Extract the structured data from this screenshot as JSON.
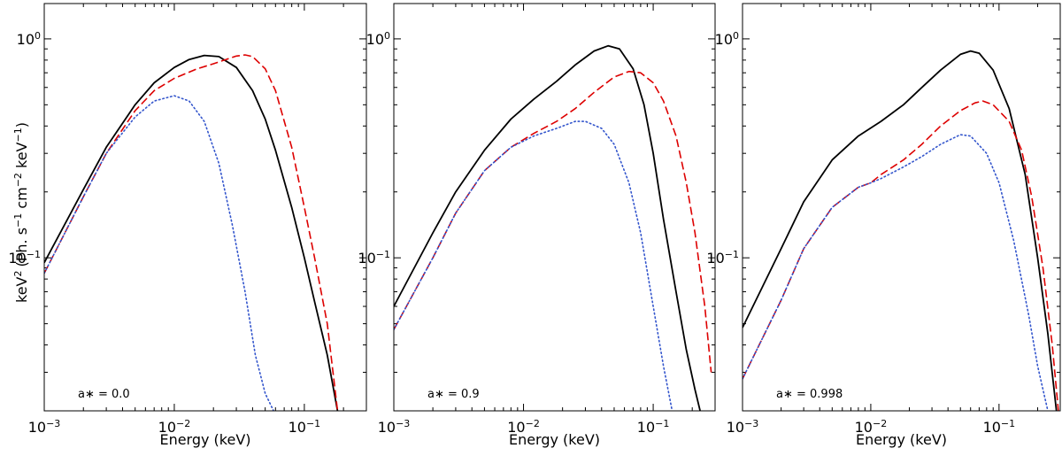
{
  "figure": {
    "ylabel": "keV² (Ph. s⁻¹ cm⁻² keV⁻¹)",
    "ylabel_base": "keV",
    "ylabel_parts": [
      "(Ph. s",
      " cm",
      " keV",
      ")"
    ],
    "ylabel_sups": [
      "2",
      "−1",
      "−2",
      "−1"
    ],
    "xlabel": "Energy (keV)"
  },
  "legend_colors": {
    "total": "#000000",
    "dashed": "#dd0000",
    "dotted": "#3355cc"
  },
  "chart_data": [
    {
      "type": "line",
      "annotation": "a∗ = 0.0",
      "xscale": "log",
      "yscale": "log",
      "xlim": [
        0.001,
        0.3
      ],
      "ylim": [
        0.02,
        1.45
      ],
      "xticks": [
        {
          "base": "10",
          "exp": "−3",
          "value": 0.001
        },
        {
          "base": "10",
          "exp": "−2",
          "value": 0.01
        },
        {
          "base": "10",
          "exp": "−1",
          "value": 0.1
        }
      ],
      "yticks": [
        {
          "base": "10",
          "exp": "−1",
          "value": 0.1
        },
        {
          "base": "10",
          "exp": "0",
          "value": 1.0
        }
      ],
      "series": [
        {
          "name": "total",
          "style": "solid",
          "x": [
            0.001,
            0.002,
            0.003,
            0.005,
            0.007,
            0.01,
            0.013,
            0.017,
            0.022,
            0.03,
            0.04,
            0.05,
            0.06,
            0.08,
            0.1,
            0.12,
            0.15,
            0.18
          ],
          "y": [
            0.095,
            0.205,
            0.32,
            0.5,
            0.63,
            0.74,
            0.805,
            0.84,
            0.83,
            0.74,
            0.58,
            0.43,
            0.31,
            0.17,
            0.1,
            0.063,
            0.036,
            0.02
          ]
        },
        {
          "name": "dashed",
          "style": "dashed",
          "x": [
            0.001,
            0.002,
            0.003,
            0.005,
            0.007,
            0.01,
            0.015,
            0.02,
            0.025,
            0.03,
            0.035,
            0.04,
            0.05,
            0.06,
            0.08,
            0.1,
            0.12,
            0.15,
            0.18
          ],
          "y": [
            0.085,
            0.19,
            0.3,
            0.47,
            0.58,
            0.66,
            0.73,
            0.77,
            0.805,
            0.835,
            0.845,
            0.83,
            0.73,
            0.58,
            0.32,
            0.17,
            0.1,
            0.05,
            0.02
          ]
        },
        {
          "name": "dotted",
          "style": "dotted",
          "x": [
            0.001,
            0.002,
            0.003,
            0.005,
            0.007,
            0.01,
            0.013,
            0.017,
            0.022,
            0.028,
            0.035,
            0.042,
            0.05,
            0.058
          ],
          "y": [
            0.085,
            0.19,
            0.3,
            0.44,
            0.52,
            0.55,
            0.52,
            0.42,
            0.27,
            0.14,
            0.07,
            0.036,
            0.024,
            0.02
          ]
        }
      ]
    },
    {
      "type": "line",
      "annotation": "a∗ = 0.9",
      "xscale": "log",
      "yscale": "log",
      "xlim": [
        0.001,
        0.3
      ],
      "ylim": [
        0.02,
        1.45
      ],
      "xticks": [
        {
          "base": "10",
          "exp": "−3",
          "value": 0.001
        },
        {
          "base": "10",
          "exp": "−2",
          "value": 0.01
        },
        {
          "base": "10",
          "exp": "−1",
          "value": 0.1
        }
      ],
      "yticks": [
        {
          "base": "10",
          "exp": "−1",
          "value": 0.1
        },
        {
          "base": "10",
          "exp": "0",
          "value": 1.0
        }
      ],
      "series": [
        {
          "name": "total",
          "style": "solid",
          "x": [
            0.001,
            0.002,
            0.003,
            0.005,
            0.008,
            0.012,
            0.018,
            0.025,
            0.035,
            0.045,
            0.055,
            0.07,
            0.085,
            0.1,
            0.12,
            0.15,
            0.18,
            0.21,
            0.23
          ],
          "y": [
            0.06,
            0.13,
            0.2,
            0.31,
            0.43,
            0.53,
            0.64,
            0.76,
            0.88,
            0.93,
            0.9,
            0.73,
            0.5,
            0.3,
            0.15,
            0.07,
            0.038,
            0.025,
            0.02
          ]
        },
        {
          "name": "dashed",
          "style": "dashed",
          "x": [
            0.001,
            0.002,
            0.003,
            0.005,
            0.008,
            0.012,
            0.018,
            0.025,
            0.035,
            0.05,
            0.065,
            0.08,
            0.1,
            0.12,
            0.15,
            0.18,
            0.21,
            0.25,
            0.28
          ],
          "y": [
            0.047,
            0.1,
            0.16,
            0.25,
            0.32,
            0.37,
            0.42,
            0.48,
            0.57,
            0.67,
            0.71,
            0.7,
            0.63,
            0.52,
            0.36,
            0.22,
            0.13,
            0.06,
            0.03
          ]
        },
        {
          "name": "dotted",
          "style": "dotted",
          "x": [
            0.001,
            0.002,
            0.003,
            0.005,
            0.008,
            0.012,
            0.018,
            0.025,
            0.03,
            0.04,
            0.05,
            0.065,
            0.08,
            0.1,
            0.12,
            0.14
          ],
          "y": [
            0.047,
            0.1,
            0.16,
            0.25,
            0.32,
            0.36,
            0.39,
            0.42,
            0.42,
            0.39,
            0.33,
            0.22,
            0.13,
            0.06,
            0.032,
            0.02
          ]
        }
      ]
    },
    {
      "type": "line",
      "annotation": "a∗ = 0.998",
      "xscale": "log",
      "yscale": "log",
      "xlim": [
        0.001,
        0.3
      ],
      "ylim": [
        0.02,
        1.45
      ],
      "xticks": [
        {
          "base": "10",
          "exp": "−3",
          "value": 0.001
        },
        {
          "base": "10",
          "exp": "−2",
          "value": 0.01
        },
        {
          "base": "10",
          "exp": "−1",
          "value": 0.1
        }
      ],
      "yticks": [
        {
          "base": "10",
          "exp": "−1",
          "value": 0.1
        },
        {
          "base": "10",
          "exp": "0",
          "value": 1.0
        }
      ],
      "series": [
        {
          "name": "total",
          "style": "solid",
          "x": [
            0.001,
            0.002,
            0.003,
            0.005,
            0.008,
            0.012,
            0.018,
            0.025,
            0.035,
            0.05,
            0.06,
            0.07,
            0.09,
            0.12,
            0.16,
            0.2,
            0.24,
            0.28
          ],
          "y": [
            0.048,
            0.11,
            0.18,
            0.28,
            0.36,
            0.42,
            0.5,
            0.6,
            0.72,
            0.85,
            0.88,
            0.86,
            0.72,
            0.48,
            0.24,
            0.1,
            0.045,
            0.02
          ]
        },
        {
          "name": "dashed",
          "style": "dashed",
          "x": [
            0.001,
            0.002,
            0.003,
            0.005,
            0.008,
            0.01,
            0.012,
            0.018,
            0.025,
            0.035,
            0.05,
            0.065,
            0.075,
            0.09,
            0.12,
            0.15,
            0.18,
            0.22,
            0.26,
            0.29
          ],
          "y": [
            0.028,
            0.064,
            0.11,
            0.17,
            0.21,
            0.22,
            0.24,
            0.28,
            0.33,
            0.4,
            0.47,
            0.51,
            0.52,
            0.5,
            0.42,
            0.31,
            0.19,
            0.09,
            0.04,
            0.02
          ]
        },
        {
          "name": "dotted",
          "style": "dotted",
          "x": [
            0.001,
            0.002,
            0.003,
            0.005,
            0.008,
            0.01,
            0.012,
            0.018,
            0.025,
            0.035,
            0.05,
            0.06,
            0.08,
            0.1,
            0.13,
            0.17,
            0.2,
            0.24
          ],
          "y": [
            0.028,
            0.064,
            0.11,
            0.17,
            0.21,
            0.22,
            0.23,
            0.26,
            0.29,
            0.33,
            0.365,
            0.36,
            0.3,
            0.22,
            0.12,
            0.055,
            0.032,
            0.02
          ]
        }
      ]
    }
  ]
}
